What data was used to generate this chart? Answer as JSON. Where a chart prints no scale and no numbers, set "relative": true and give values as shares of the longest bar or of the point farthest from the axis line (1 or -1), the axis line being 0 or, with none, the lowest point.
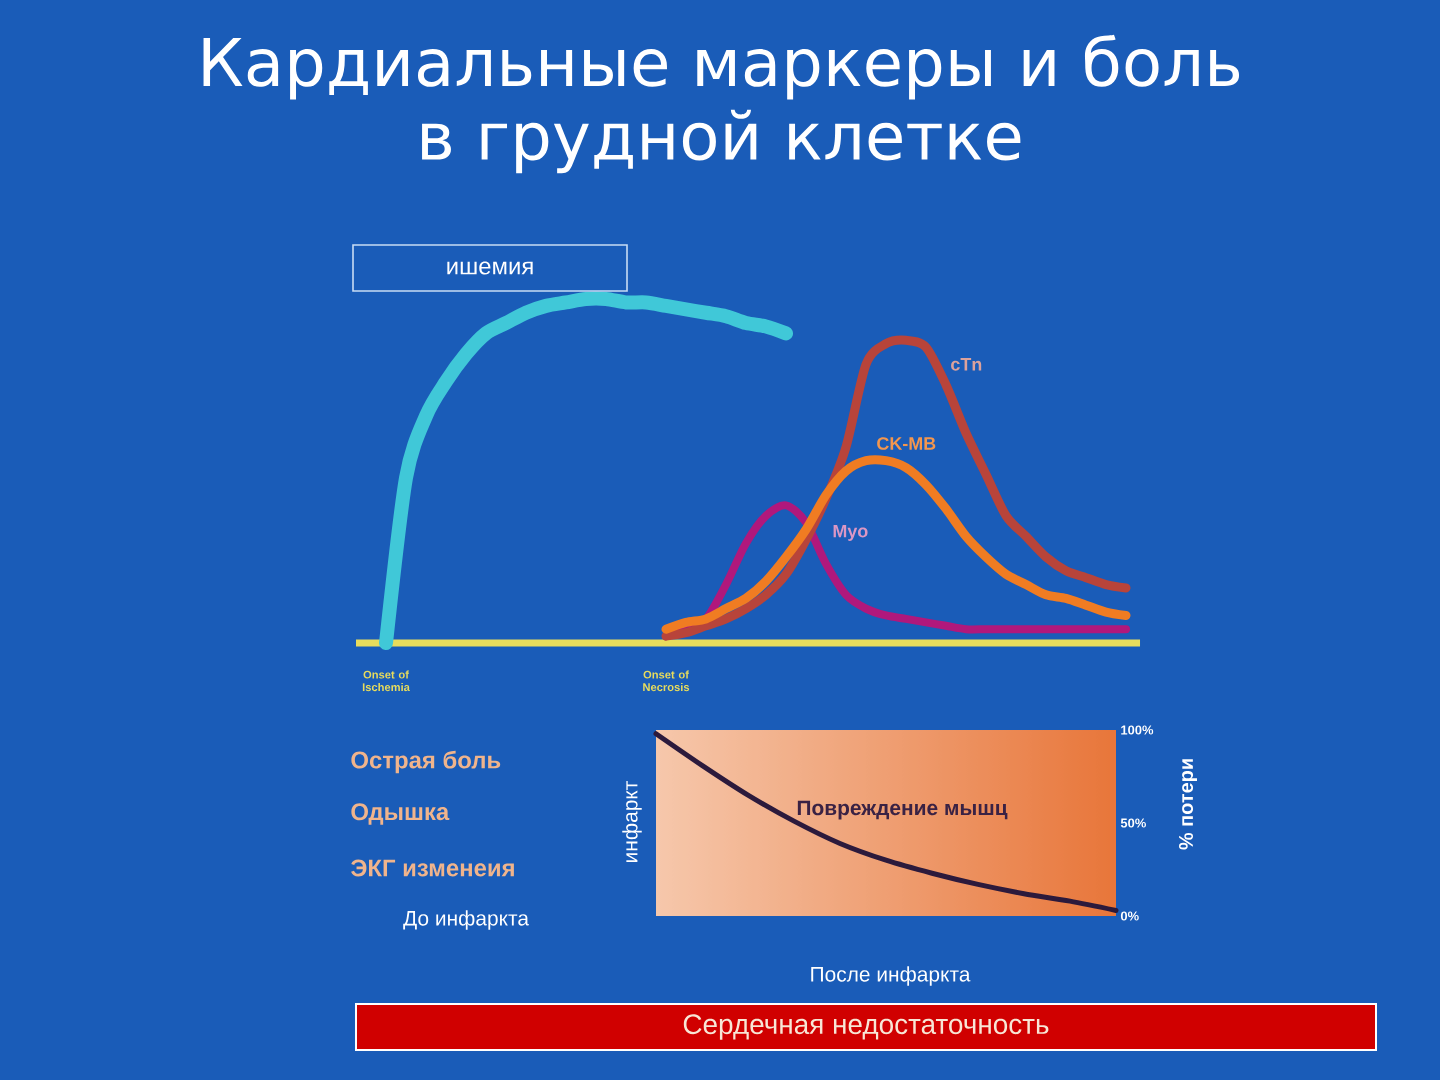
{
  "chart_data": [
    {
      "type": "line",
      "title": "Кардиальные маркеры и боль в грудной клетке",
      "relative": true,
      "tick_labels": false,
      "categories": [
        null,
        null,
        null,
        null,
        null,
        null,
        null,
        null,
        null,
        null,
        null,
        null,
        null,
        null,
        null,
        null,
        null,
        null,
        null,
        null,
        null,
        null,
        null,
        null,
        null,
        null,
        null,
        null,
        null,
        null,
        null,
        null,
        null,
        null,
        null,
        null,
        null,
        null
      ],
      "series": [
        {
          "name": "ишемия",
          "color": "#40c8d8",
          "values": [
            0,
            0.48,
            0.66,
            0.76,
            0.84,
            0.9,
            0.93,
            0.96,
            0.98,
            0.99,
            1,
            1,
            0.99,
            0.99,
            0.98,
            0.97,
            0.96,
            0.95,
            0.93,
            0.92,
            0.9,
            null,
            null,
            null,
            null,
            null,
            null,
            null,
            null,
            null,
            null,
            null,
            null,
            null,
            null,
            null,
            null,
            null
          ]
        },
        {
          "name": "Myo",
          "color": "#b0187c",
          "values": [
            null,
            null,
            null,
            null,
            null,
            null,
            null,
            null,
            null,
            null,
            null,
            null,
            null,
            null,
            0.02,
            0.04,
            0.07,
            0.17,
            0.29,
            0.37,
            0.4,
            0.35,
            0.23,
            0.14,
            0.1,
            0.08,
            0.07,
            0.06,
            0.05,
            0.04,
            0.04,
            0.04,
            0.04,
            0.04,
            0.04,
            0.04,
            0.04,
            0.04
          ]
        },
        {
          "name": "cTn",
          "color": "#b8443a",
          "values": [
            null,
            null,
            null,
            null,
            null,
            null,
            null,
            null,
            null,
            null,
            null,
            null,
            null,
            null,
            0.02,
            0.03,
            0.05,
            0.07,
            0.1,
            0.14,
            0.2,
            0.3,
            0.42,
            0.57,
            0.81,
            0.87,
            0.88,
            0.86,
            0.75,
            0.61,
            0.49,
            0.37,
            0.31,
            0.25,
            0.21,
            0.19,
            0.17,
            0.16
          ]
        },
        {
          "name": "CK-MB",
          "color": "#f07c22",
          "values": [
            null,
            null,
            null,
            null,
            null,
            null,
            null,
            null,
            null,
            null,
            null,
            null,
            null,
            null,
            0.04,
            0.06,
            0.07,
            0.1,
            0.13,
            0.18,
            0.25,
            0.33,
            0.43,
            0.5,
            0.53,
            0.53,
            0.51,
            0.46,
            0.39,
            0.31,
            0.25,
            0.2,
            0.17,
            0.14,
            0.13,
            0.11,
            0.09,
            0.08
          ]
        }
      ],
      "annotations": [
        "Onset of Ischemia",
        "Onset of Necrosis"
      ]
    },
    {
      "type": "line",
      "xlabel": "После инфаркта",
      "ylabel": "% потери",
      "tick_labels": "y",
      "categories": [
        null,
        null,
        null,
        null,
        null,
        null,
        null,
        null,
        null,
        null,
        null
      ],
      "color": "#2c1a3c",
      "values": [
        98,
        81,
        65,
        51,
        39,
        30,
        23,
        17,
        12,
        8,
        3
      ],
      "ylim": [
        0,
        100
      ],
      "yticks": [
        {
          "value": 0,
          "label": "0%"
        },
        {
          "value": 50,
          "label": "50%"
        },
        {
          "value": 100,
          "label": "100%"
        }
      ],
      "annotations": [
        "Повреждение мышц",
        "инфаркт",
        "Острая боль",
        "Одышка",
        "ЭКГ изменеия",
        "До инфаркта",
        "Сердечная недостаточность"
      ]
    }
  ]
}
